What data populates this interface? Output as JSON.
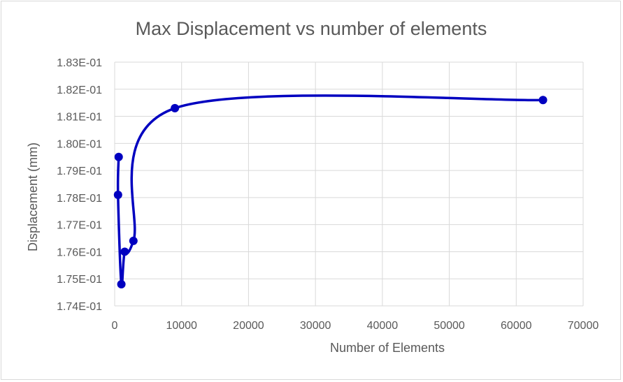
{
  "chart_data": {
    "type": "scatter",
    "title": "Max Displacement vs number of elements",
    "xlabel": "Number of Elements",
    "ylabel": "Displacement (mm)",
    "xlim": [
      0,
      70000
    ],
    "ylim": [
      0.174,
      0.183
    ],
    "x_ticks": [
      0,
      10000,
      20000,
      30000,
      40000,
      50000,
      60000,
      70000
    ],
    "x_tick_labels": [
      "0",
      "10000",
      "20000",
      "30000",
      "40000",
      "50000",
      "60000",
      "70000"
    ],
    "y_ticks": [
      0.174,
      0.175,
      0.176,
      0.177,
      0.178,
      0.179,
      0.18,
      0.181,
      0.182,
      0.183
    ],
    "y_tick_labels": [
      "1.74E-01",
      "1.75E-01",
      "1.76E-01",
      "1.77E-01",
      "1.78E-01",
      "1.79E-01",
      "1.80E-01",
      "1.81E-01",
      "1.82E-01",
      "1.83E-01"
    ],
    "grid": true,
    "smooth_line": true,
    "series": [
      {
        "color": "#0000c0",
        "points": [
          {
            "x": 600,
            "y": 0.1795
          },
          {
            "x": 500,
            "y": 0.1781
          },
          {
            "x": 1000,
            "y": 0.1748
          },
          {
            "x": 1500,
            "y": 0.176
          },
          {
            "x": 2800,
            "y": 0.1764
          },
          {
            "x": 9000,
            "y": 0.1813
          },
          {
            "x": 64000,
            "y": 0.1816
          }
        ]
      }
    ]
  }
}
